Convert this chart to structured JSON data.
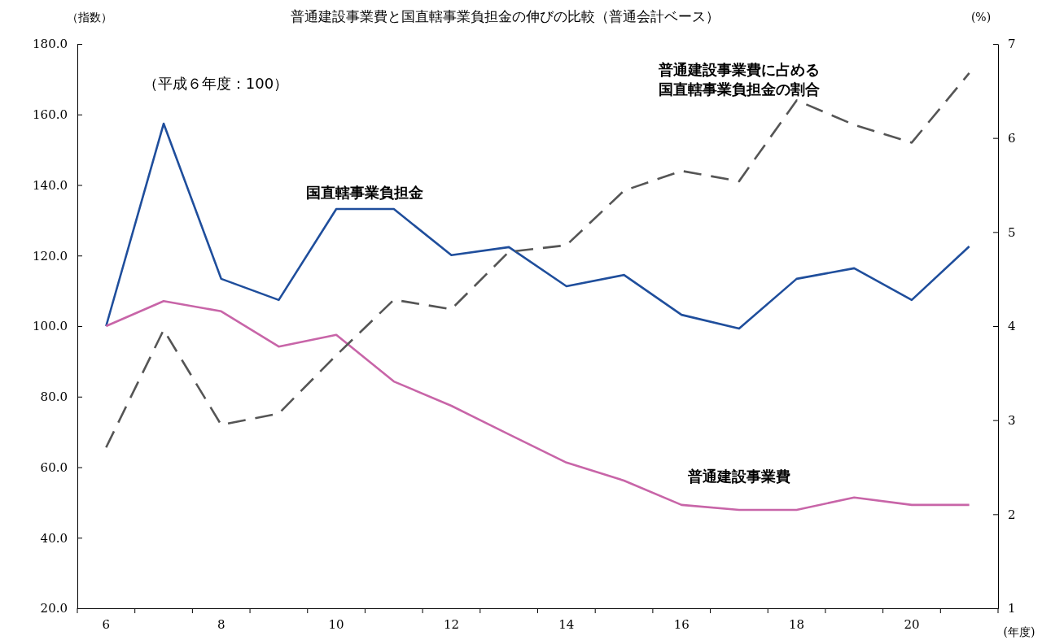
{
  "chart_data": {
    "type": "line",
    "title": "普通建設事業費と国直轄事業負担金の伸びの比較（普通会計ベース）",
    "ylabel": "（指数）",
    "y2label": "(%)",
    "xlabel": "(年度)",
    "annotations": [
      "（平成６年度：100）"
    ],
    "categories": [
      "6",
      null,
      "8",
      null,
      "10",
      null,
      "12",
      null,
      "14",
      null,
      "16",
      null,
      "18",
      null,
      "20",
      null
    ],
    "ylim": [
      20,
      180
    ],
    "yticks": [
      {
        "value": 20,
        "label": "20.0"
      },
      {
        "value": 40,
        "label": "40.0"
      },
      {
        "value": 60,
        "label": "60.0"
      },
      {
        "value": 80,
        "label": "80.0"
      },
      {
        "value": 100,
        "label": "100.0"
      },
      {
        "value": 120,
        "label": "120.0"
      },
      {
        "value": 140,
        "label": "140.0"
      },
      {
        "value": 160,
        "label": "160.0"
      },
      {
        "value": 180,
        "label": "180.0"
      }
    ],
    "y2lim": [
      1,
      7
    ],
    "y2ticks": [
      1,
      2,
      3,
      4,
      5,
      6,
      7
    ],
    "grid": false,
    "legend": false,
    "marker": "none",
    "series": [
      {
        "name": "国直轄事業負担金",
        "color": "#1f4e9c",
        "line_style": "solid",
        "values": [
          100,
          157.4,
          113.4,
          107.4,
          133.2,
          133.2,
          120.1,
          122.4,
          111.3,
          114.5,
          103.2,
          99.3,
          113.4,
          116.4,
          107.4,
          122.6
        ]
      },
      {
        "name": "普通建設事業費",
        "color": "#c865a8",
        "line_style": "solid",
        "values": [
          100,
          107.1,
          104.2,
          94.2,
          97.5,
          84.3,
          77.4,
          69.3,
          61.3,
          56.2,
          49.3,
          47.9,
          47.9,
          51.4,
          49.3,
          49.3
        ]
      },
      {
        "name": "普通建設事業費に占める国直轄事業負担金の割合",
        "color": "#555555",
        "line_style": "dashed",
        "axis": "y2",
        "values": [
          2.71,
          3.96,
          2.95,
          3.07,
          3.69,
          4.28,
          4.18,
          4.79,
          4.86,
          5.44,
          5.65,
          5.54,
          6.4,
          6.14,
          5.95,
          6.69
        ]
      }
    ]
  }
}
